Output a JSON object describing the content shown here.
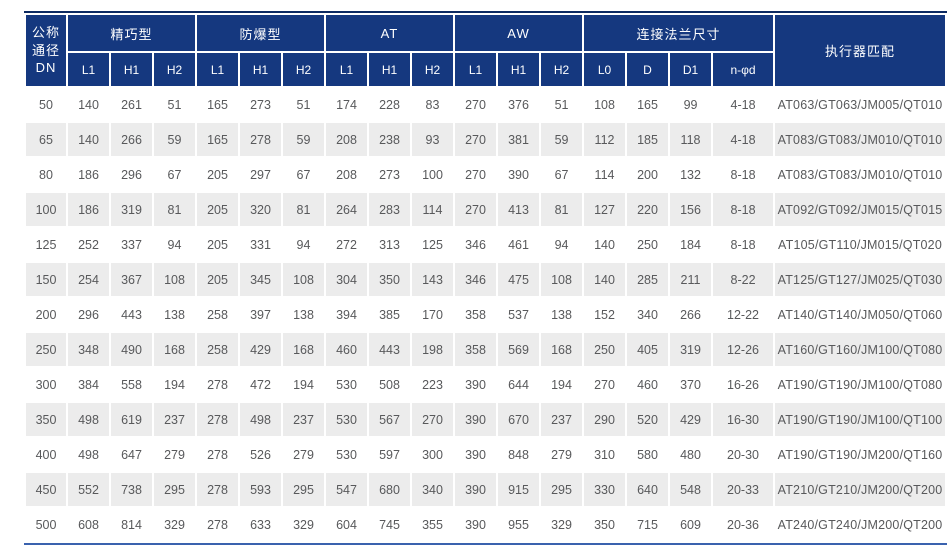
{
  "colors": {
    "header_bg": "#15387f",
    "header_top_border": "#0c2a62",
    "bottom_line": "#3a62ae",
    "row_stripe": "#ececec",
    "cell_text": "#58595b"
  },
  "table": {
    "header": {
      "dn": "公称\n通径\nDN",
      "groups": [
        {
          "label": "精巧型"
        },
        {
          "label": "防爆型"
        },
        {
          "label": "AT"
        },
        {
          "label": "AW"
        },
        {
          "label": "连接法兰尺寸"
        }
      ],
      "sub": [
        "L1",
        "H1",
        "H2",
        "L1",
        "H1",
        "H2",
        "L1",
        "H1",
        "H2",
        "L1",
        "H1",
        "H2",
        "L0",
        "D",
        "D1",
        "n-φd"
      ],
      "actuator": "执行器匹配"
    },
    "rows": [
      [
        "50",
        "140",
        "261",
        "51",
        "165",
        "273",
        "51",
        "174",
        "228",
        "83",
        "270",
        "376",
        "51",
        "108",
        "165",
        "99",
        "4-18",
        "AT063/GT063/JM005/QT010"
      ],
      [
        "65",
        "140",
        "266",
        "59",
        "165",
        "278",
        "59",
        "208",
        "238",
        "93",
        "270",
        "381",
        "59",
        "112",
        "185",
        "118",
        "4-18",
        "AT083/GT083/JM010/QT010"
      ],
      [
        "80",
        "186",
        "296",
        "67",
        "205",
        "297",
        "67",
        "208",
        "273",
        "100",
        "270",
        "390",
        "67",
        "114",
        "200",
        "132",
        "8-18",
        "AT083/GT083/JM010/QT010"
      ],
      [
        "100",
        "186",
        "319",
        "81",
        "205",
        "320",
        "81",
        "264",
        "283",
        "114",
        "270",
        "413",
        "81",
        "127",
        "220",
        "156",
        "8-18",
        "AT092/GT092/JM015/QT015"
      ],
      [
        "125",
        "252",
        "337",
        "94",
        "205",
        "331",
        "94",
        "272",
        "313",
        "125",
        "346",
        "461",
        "94",
        "140",
        "250",
        "184",
        "8-18",
        "AT105/GT110/JM015/QT020"
      ],
      [
        "150",
        "254",
        "367",
        "108",
        "205",
        "345",
        "108",
        "304",
        "350",
        "143",
        "346",
        "475",
        "108",
        "140",
        "285",
        "211",
        "8-22",
        "AT125/GT127/JM025/QT030"
      ],
      [
        "200",
        "296",
        "443",
        "138",
        "258",
        "397",
        "138",
        "394",
        "385",
        "170",
        "358",
        "537",
        "138",
        "152",
        "340",
        "266",
        "12-22",
        "AT140/GT140/JM050/QT060"
      ],
      [
        "250",
        "348",
        "490",
        "168",
        "258",
        "429",
        "168",
        "460",
        "443",
        "198",
        "358",
        "569",
        "168",
        "250",
        "405",
        "319",
        "12-26",
        "AT160/GT160/JM100/QT080"
      ],
      [
        "300",
        "384",
        "558",
        "194",
        "278",
        "472",
        "194",
        "530",
        "508",
        "223",
        "390",
        "644",
        "194",
        "270",
        "460",
        "370",
        "16-26",
        "AT190/GT190/JM100/QT080"
      ],
      [
        "350",
        "498",
        "619",
        "237",
        "278",
        "498",
        "237",
        "530",
        "567",
        "270",
        "390",
        "670",
        "237",
        "290",
        "520",
        "429",
        "16-30",
        "AT190/GT190/JM100/QT100"
      ],
      [
        "400",
        "498",
        "647",
        "279",
        "278",
        "526",
        "279",
        "530",
        "597",
        "300",
        "390",
        "848",
        "279",
        "310",
        "580",
        "480",
        "20-30",
        "AT190/GT190/JM200/QT160"
      ],
      [
        "450",
        "552",
        "738",
        "295",
        "278",
        "593",
        "295",
        "547",
        "680",
        "340",
        "390",
        "915",
        "295",
        "330",
        "640",
        "548",
        "20-33",
        "AT210/GT210/JM200/QT200"
      ],
      [
        "500",
        "608",
        "814",
        "329",
        "278",
        "633",
        "329",
        "604",
        "745",
        "355",
        "390",
        "955",
        "329",
        "350",
        "715",
        "609",
        "20-36",
        "AT240/GT240/JM200/QT200"
      ]
    ]
  }
}
